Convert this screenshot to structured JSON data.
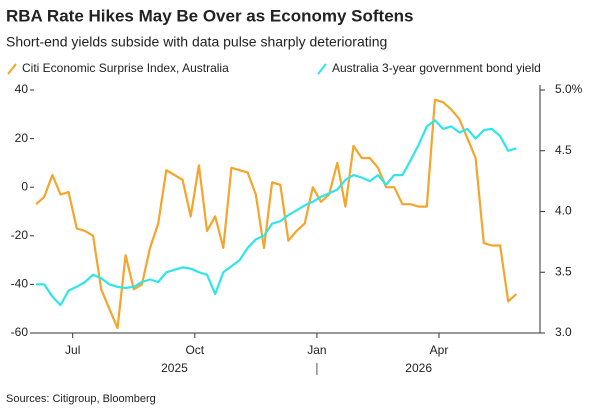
{
  "chart_data": {
    "type": "line",
    "title": "RBA Rate Hikes May Be Over as Economy Softens",
    "subtitle": "Short-end yields subside with data pulse sharply deteriorating",
    "source": "Sources: Citigroup, Bloomberg",
    "x": [
      "2025-06",
      "2025-06",
      "2025-06",
      "2025-06",
      "2025-06",
      "2025-07",
      "2025-07",
      "2025-07",
      "2025-07",
      "2025-07",
      "2025-08",
      "2025-08",
      "2025-08",
      "2025-08",
      "2025-08",
      "2025-09",
      "2025-09",
      "2025-09",
      "2025-09",
      "2025-09",
      "2025-10",
      "2025-10",
      "2025-10",
      "2025-10",
      "2025-10",
      "2025-11",
      "2025-11",
      "2025-11",
      "2025-11",
      "2025-11",
      "2025-12",
      "2025-12",
      "2025-12",
      "2025-12",
      "2025-12",
      "2026-01",
      "2026-01",
      "2026-01",
      "2026-01",
      "2026-01",
      "2026-02",
      "2026-02",
      "2026-02",
      "2026-02",
      "2026-02",
      "2026-03",
      "2026-03",
      "2026-03",
      "2026-03",
      "2026-03",
      "2026-04",
      "2026-04",
      "2026-04",
      "2026-04",
      "2026-04",
      "2026-05",
      "2026-05",
      "2026-05",
      "2026-05",
      "2026-05"
    ],
    "xlim": [
      "2025-06",
      "2026-05"
    ],
    "xticks": [
      {
        "value": "2025-07",
        "label": "Jul"
      },
      {
        "value": "2025-10",
        "label": "Oct"
      },
      {
        "value": "2026-01",
        "label": "Jan"
      },
      {
        "value": "2026-04",
        "label": "Apr"
      }
    ],
    "x_years": [
      "2025",
      "2026"
    ],
    "ylim": [
      -60,
      40
    ],
    "yticks": [
      40,
      20,
      0,
      -20,
      -40,
      -60
    ],
    "y2lim": [
      3,
      5
    ],
    "y2ticks": [
      {
        "value": 5,
        "label": "5.0%"
      },
      {
        "value": 4.5,
        "label": "4.5"
      },
      {
        "value": 4,
        "label": "4.0"
      },
      {
        "value": 3.5,
        "label": "3.5"
      },
      {
        "value": 3,
        "label": "3.0"
      }
    ],
    "series": [
      {
        "name": "Citi Economic Surprise Index, Australia",
        "color": "#f5a42c",
        "values": [
          -7,
          -4,
          5,
          -3,
          -2,
          -17,
          -18,
          -20,
          -42,
          -50,
          -58,
          -28,
          -42,
          -40,
          -25,
          -15,
          7,
          5,
          3,
          -12,
          9,
          -18,
          -12,
          -25,
          8,
          7,
          6,
          -3,
          -25,
          2,
          1,
          -22,
          -18,
          -15,
          0,
          -6,
          -3,
          10,
          -8,
          17,
          12,
          12,
          8,
          0,
          0,
          -7,
          -7,
          -8,
          -8,
          36,
          35,
          32,
          28,
          20,
          12,
          -23,
          -24,
          -24,
          -47,
          -44
        ]
      },
      {
        "name": "Australia 3-year government bond yield",
        "color": "#2ee6ea",
        "axis": "y2",
        "values": [
          3.4,
          3.4,
          3.3,
          3.23,
          3.35,
          3.38,
          3.42,
          3.48,
          3.45,
          3.4,
          3.38,
          3.37,
          3.38,
          3.42,
          3.44,
          3.42,
          3.5,
          3.52,
          3.54,
          3.53,
          3.5,
          3.48,
          3.32,
          3.5,
          3.55,
          3.6,
          3.7,
          3.77,
          3.8,
          3.9,
          3.92,
          3.97,
          4.01,
          4.05,
          4.08,
          4.12,
          4.15,
          4.18,
          4.26,
          4.3,
          4.28,
          4.25,
          4.3,
          4.22,
          4.3,
          4.3,
          4.42,
          4.55,
          4.7,
          4.75,
          4.68,
          4.7,
          4.65,
          4.68,
          4.6,
          4.67,
          4.68,
          4.62,
          4.5,
          4.52
        ]
      }
    ]
  }
}
